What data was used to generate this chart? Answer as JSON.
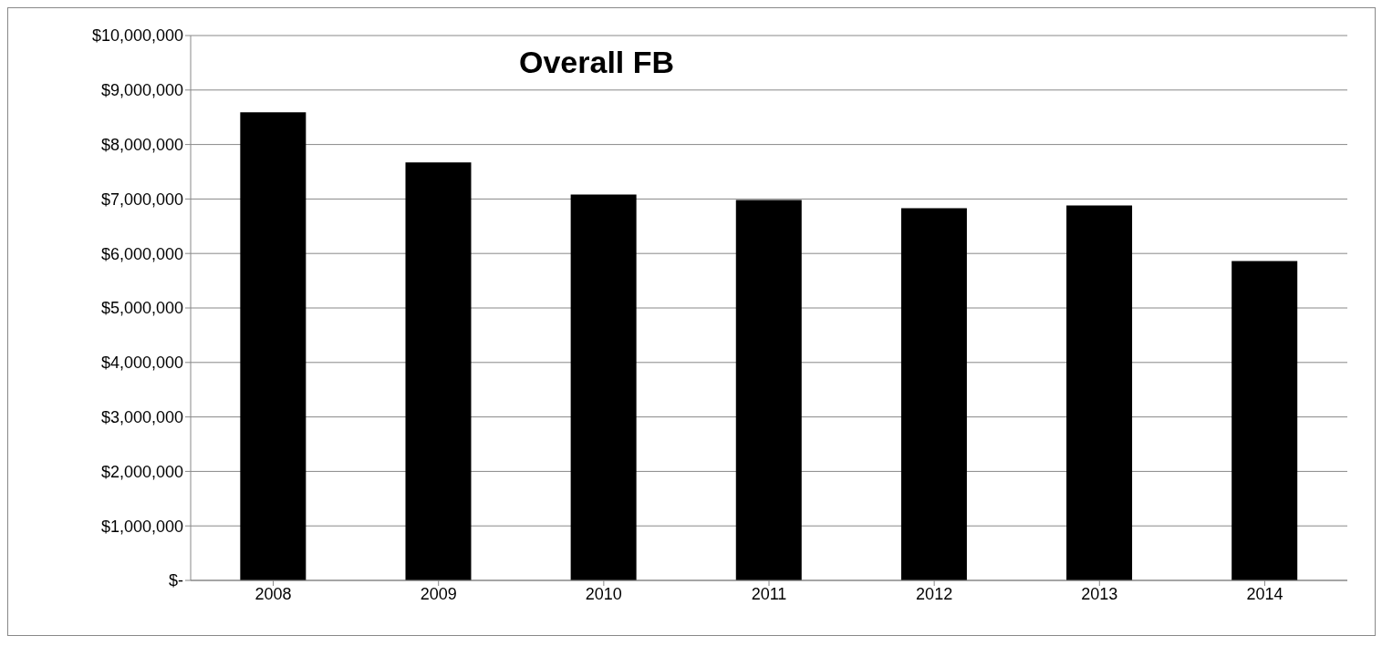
{
  "chart_data": {
    "type": "bar",
    "title": "Overall FB",
    "categories": [
      "2008",
      "2009",
      "2010",
      "2011",
      "2012",
      "2013",
      "2014"
    ],
    "values": [
      8590000,
      7670000,
      7080000,
      6980000,
      6830000,
      6880000,
      5860000
    ],
    "color": "#000000",
    "ylim": [
      0,
      10000000
    ],
    "yticks": [
      {
        "value": 0,
        "label": "$-"
      },
      {
        "value": 1000000,
        "label": "$1,000,000"
      },
      {
        "value": 2000000,
        "label": "$2,000,000"
      },
      {
        "value": 3000000,
        "label": "$3,000,000"
      },
      {
        "value": 4000000,
        "label": "$4,000,000"
      },
      {
        "value": 5000000,
        "label": "$5,000,000"
      },
      {
        "value": 6000000,
        "label": "$6,000,000"
      },
      {
        "value": 7000000,
        "label": "$7,000,000"
      },
      {
        "value": 8000000,
        "label": "$8,000,000"
      },
      {
        "value": 9000000,
        "label": "$9,000,000"
      },
      {
        "value": 10000000,
        "label": "$10,000,000"
      }
    ],
    "grid": "y"
  }
}
